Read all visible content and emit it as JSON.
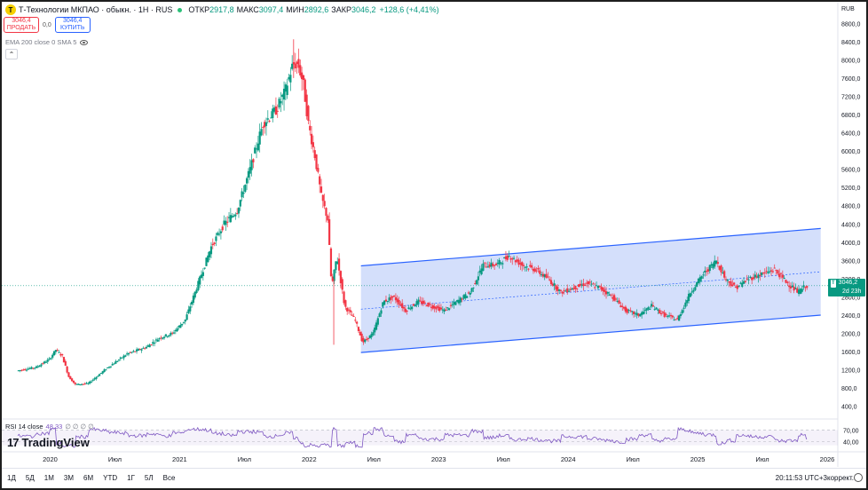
{
  "header": {
    "symbol_logo": "T",
    "title": "Т-Технологии МКПАО · обыкн. · 1H · RUS",
    "ohlc": [
      {
        "label": "ОТКР",
        "value": "2917,8"
      },
      {
        "label": "МАКС",
        "value": "3097,4"
      },
      {
        "label": "МИН",
        "value": "2892,6"
      },
      {
        "label": "ЗАКР",
        "value": "3046,2"
      }
    ],
    "change": "+128,6 (+4,41%)"
  },
  "trade": {
    "sell_price": "3046,4",
    "sell_label": "ПРОДАТЬ",
    "spread": "0,0",
    "buy_price": "3046,4",
    "buy_label": "КУПИТЬ"
  },
  "indicators": {
    "ema": "EMA 200 close 0 SMA 5",
    "rsi_label": "RSI 14 close",
    "rsi_value": "48,33",
    "rsi_extra": "∅ ∅ ∅ ∅"
  },
  "currency": "RUB",
  "price_label": {
    "badge": "T",
    "price": "3046,2",
    "countdown": "2d 23h"
  },
  "brand": "TradingView",
  "timeframes": [
    "1Д",
    "5Д",
    "1М",
    "3М",
    "6М",
    "YTD",
    "1Г",
    "5Л",
    "Все"
  ],
  "clock": "20:11:53 UTC+3",
  "correction": "коррект.",
  "colors": {
    "up": "#089981",
    "down": "#f23645",
    "channel": "#2962ff",
    "channel_fill": "#cfdcfb",
    "rsi": "#7e57c2"
  },
  "chart_data": {
    "type": "candlestick",
    "y_ticks": [
      "8800,0",
      "8400,0",
      "8000,0",
      "7600,0",
      "7200,0",
      "6800,0",
      "6400,0",
      "6000,0",
      "5600,0",
      "5200,0",
      "4800,0",
      "4400,0",
      "4000,0",
      "3600,0",
      "3200,0",
      "2800,0",
      "2400,0",
      "2000,0",
      "1600,0",
      "1200,0",
      "800,0",
      "400,0"
    ],
    "ylim": [
      200,
      9000
    ],
    "x_ticks": [
      {
        "label": "2020",
        "t": 2020.0
      },
      {
        "label": "Июл",
        "t": 2020.5
      },
      {
        "label": "2021",
        "t": 2021.0
      },
      {
        "label": "Июл",
        "t": 2021.5
      },
      {
        "label": "2022",
        "t": 2022.0
      },
      {
        "label": "Июл",
        "t": 2022.5
      },
      {
        "label": "2023",
        "t": 2023.0
      },
      {
        "label": "Июл",
        "t": 2023.5
      },
      {
        "label": "2024",
        "t": 2024.0
      },
      {
        "label": "Июл",
        "t": 2024.5
      },
      {
        "label": "2025",
        "t": 2025.0
      },
      {
        "label": "Июл",
        "t": 2025.5
      },
      {
        "label": "2026",
        "t": 2026.0
      }
    ],
    "xlim": [
      2019.75,
      2026.0
    ],
    "price_path": [
      [
        2019.75,
        1180
      ],
      [
        2019.9,
        1260
      ],
      [
        2020.0,
        1430
      ],
      [
        2020.05,
        1640
      ],
      [
        2020.1,
        1500
      ],
      [
        2020.15,
        1050
      ],
      [
        2020.2,
        880
      ],
      [
        2020.3,
        900
      ],
      [
        2020.45,
        1250
      ],
      [
        2020.6,
        1550
      ],
      [
        2020.75,
        1700
      ],
      [
        2020.85,
        1900
      ],
      [
        2020.95,
        2000
      ],
      [
        2021.05,
        2300
      ],
      [
        2021.15,
        3100
      ],
      [
        2021.25,
        3900
      ],
      [
        2021.35,
        4400
      ],
      [
        2021.45,
        4700
      ],
      [
        2021.55,
        5600
      ],
      [
        2021.65,
        6600
      ],
      [
        2021.75,
        6900
      ],
      [
        2021.82,
        7300
      ],
      [
        2021.88,
        7900
      ],
      [
        2021.92,
        7900
      ],
      [
        2021.96,
        7500
      ],
      [
        2022.0,
        6600
      ],
      [
        2022.05,
        5900
      ],
      [
        2022.1,
        5000
      ],
      [
        2022.15,
        4500
      ],
      [
        2022.18,
        3000
      ],
      [
        2022.22,
        3700
      ],
      [
        2022.28,
        2600
      ],
      [
        2022.36,
        2300
      ],
      [
        2022.42,
        1800
      ],
      [
        2022.5,
        2000
      ],
      [
        2022.58,
        2700
      ],
      [
        2022.66,
        2800
      ],
      [
        2022.75,
        2500
      ],
      [
        2022.85,
        2700
      ],
      [
        2022.95,
        2600
      ],
      [
        2023.05,
        2500
      ],
      [
        2023.15,
        2700
      ],
      [
        2023.25,
        2900
      ],
      [
        2023.35,
        3500
      ],
      [
        2023.45,
        3500
      ],
      [
        2023.55,
        3700
      ],
      [
        2023.65,
        3500
      ],
      [
        2023.75,
        3400
      ],
      [
        2023.85,
        3200
      ],
      [
        2023.95,
        2900
      ],
      [
        2024.05,
        3000
      ],
      [
        2024.15,
        3100
      ],
      [
        2024.25,
        3000
      ],
      [
        2024.35,
        2800
      ],
      [
        2024.45,
        2500
      ],
      [
        2024.55,
        2400
      ],
      [
        2024.65,
        2600
      ],
      [
        2024.75,
        2400
      ],
      [
        2024.85,
        2300
      ],
      [
        2024.95,
        2900
      ],
      [
        2025.05,
        3300
      ],
      [
        2025.15,
        3600
      ],
      [
        2025.22,
        3200
      ],
      [
        2025.3,
        3000
      ],
      [
        2025.4,
        3200
      ],
      [
        2025.5,
        3300
      ],
      [
        2025.6,
        3400
      ],
      [
        2025.7,
        3100
      ],
      [
        2025.78,
        2900
      ],
      [
        2025.84,
        3046
      ]
    ],
    "channel": {
      "lower": [
        [
          2022.4,
          1580
        ],
        [
          2025.95,
          2400
        ]
      ],
      "upper": [
        [
          2022.4,
          3480
        ],
        [
          2025.95,
          4300
        ]
      ]
    },
    "current_price": 3046.2,
    "rsi_ticks": [
      "70,00",
      "40,00"
    ],
    "rsi_ylim": [
      20,
      85
    ],
    "rsi_value": 48.33
  }
}
